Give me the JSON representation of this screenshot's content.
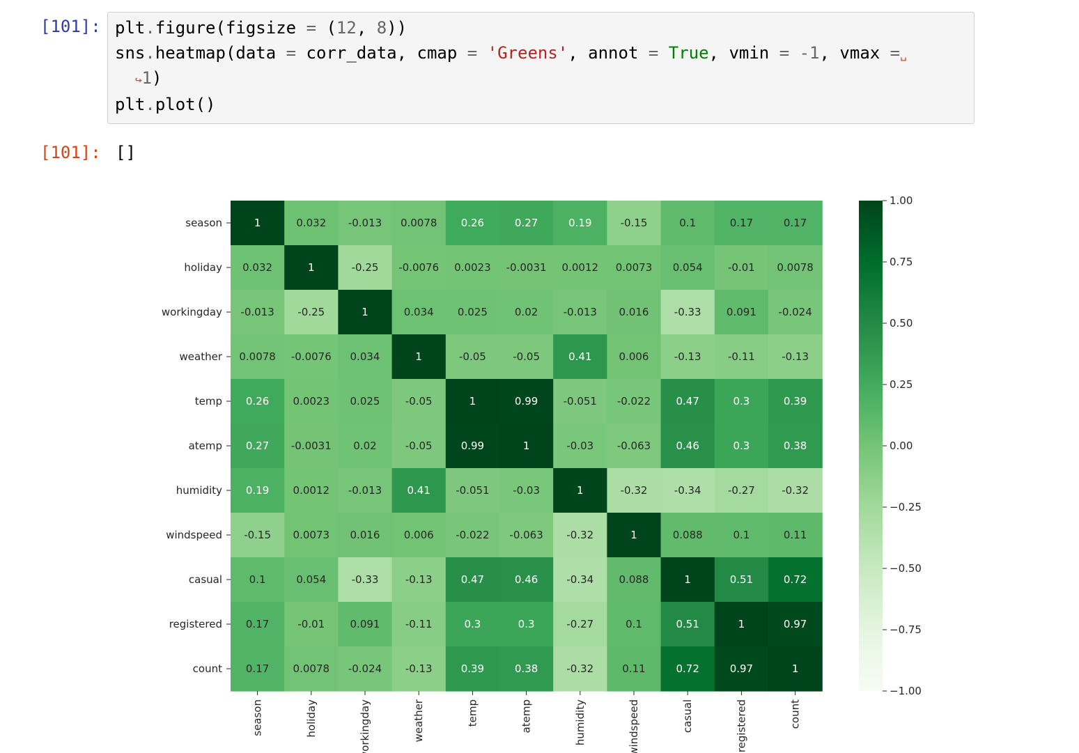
{
  "notebook": {
    "input_prompt": "[101]:",
    "output_prompt": "[101]:",
    "output_text": "[]",
    "code_lines": [
      [
        {
          "t": "plt",
          "c": ""
        },
        {
          "t": ".",
          "c": "op"
        },
        {
          "t": "figure(figsize ",
          "c": ""
        },
        {
          "t": "=",
          "c": "op"
        },
        {
          "t": " (",
          "c": ""
        },
        {
          "t": "12",
          "c": "num"
        },
        {
          "t": ", ",
          "c": ""
        },
        {
          "t": "8",
          "c": "num"
        },
        {
          "t": "))",
          "c": ""
        }
      ],
      [
        {
          "t": "sns",
          "c": ""
        },
        {
          "t": ".",
          "c": "op"
        },
        {
          "t": "heatmap(data ",
          "c": ""
        },
        {
          "t": "=",
          "c": "op"
        },
        {
          "t": " corr_data, cmap ",
          "c": ""
        },
        {
          "t": "=",
          "c": "op"
        },
        {
          "t": " ",
          "c": ""
        },
        {
          "t": "'Greens'",
          "c": "str"
        },
        {
          "t": ", annot ",
          "c": ""
        },
        {
          "t": "=",
          "c": "op"
        },
        {
          "t": " ",
          "c": ""
        },
        {
          "t": "True",
          "c": "kw"
        },
        {
          "t": ", vmin ",
          "c": ""
        },
        {
          "t": "=",
          "c": "op"
        },
        {
          "t": " ",
          "c": ""
        },
        {
          "t": "-1",
          "c": "num"
        },
        {
          "t": ", vmax ",
          "c": ""
        },
        {
          "t": "=",
          "c": "op"
        },
        {
          "t": "␣",
          "c": "cont"
        }
      ],
      [
        {
          "t": "  ",
          "c": ""
        },
        {
          "t": "↪",
          "c": "cont"
        },
        {
          "t": "1",
          "c": "num"
        },
        {
          "t": ")",
          "c": ""
        }
      ],
      [
        {
          "t": "plt",
          "c": ""
        },
        {
          "t": ".",
          "c": "op"
        },
        {
          "t": "plot()",
          "c": ""
        }
      ]
    ]
  },
  "chart_data": {
    "type": "heatmap",
    "cmap": "Greens",
    "vmin": -1,
    "vmax": 1,
    "row_labels": [
      "season",
      "holiday",
      "workingday",
      "weather",
      "temp",
      "atemp",
      "humidity",
      "windspeed",
      "casual",
      "registered",
      "count"
    ],
    "col_labels": [
      "season",
      "holiday",
      "workingday",
      "weather",
      "temp",
      "atemp",
      "humidity",
      "windspeed",
      "casual",
      "registered",
      "count"
    ],
    "values": [
      [
        1,
        0.032,
        -0.013,
        0.0078,
        0.26,
        0.27,
        0.19,
        -0.15,
        0.1,
        0.17,
        0.17
      ],
      [
        0.032,
        1,
        -0.25,
        -0.0076,
        0.0023,
        -0.0031,
        0.0012,
        0.0073,
        0.054,
        -0.01,
        0.0078
      ],
      [
        -0.013,
        -0.25,
        1,
        0.034,
        0.025,
        0.02,
        -0.013,
        0.016,
        -0.33,
        0.091,
        -0.024
      ],
      [
        0.0078,
        -0.0076,
        0.034,
        1,
        -0.05,
        -0.05,
        0.41,
        0.006,
        -0.13,
        -0.11,
        -0.13
      ],
      [
        0.26,
        0.0023,
        0.025,
        -0.05,
        1,
        0.99,
        -0.051,
        -0.022,
        0.47,
        0.3,
        0.39
      ],
      [
        0.27,
        -0.0031,
        0.02,
        -0.05,
        0.99,
        1,
        -0.03,
        -0.063,
        0.46,
        0.3,
        0.38
      ],
      [
        0.19,
        0.0012,
        -0.013,
        0.41,
        -0.051,
        -0.03,
        1,
        -0.32,
        -0.34,
        -0.27,
        -0.32
      ],
      [
        -0.15,
        0.0073,
        0.016,
        0.006,
        -0.022,
        -0.063,
        -0.32,
        1,
        0.088,
        0.1,
        0.11
      ],
      [
        0.1,
        0.054,
        -0.33,
        -0.13,
        0.47,
        0.46,
        -0.34,
        0.088,
        1,
        0.51,
        0.72
      ],
      [
        0.17,
        -0.01,
        0.091,
        -0.11,
        0.3,
        0.3,
        -0.27,
        0.1,
        0.51,
        1,
        0.97
      ],
      [
        0.17,
        0.0078,
        -0.024,
        -0.13,
        0.39,
        0.38,
        -0.32,
        0.11,
        0.72,
        0.97,
        1
      ]
    ],
    "colorbar_ticks": [
      "1.00",
      "0.75",
      "0.50",
      "0.25",
      "0.00",
      "−0.25",
      "−0.50",
      "−0.75",
      "−1.00"
    ],
    "colorbar_tick_values": [
      1,
      0.75,
      0.5,
      0.25,
      0,
      -0.25,
      -0.5,
      -0.75,
      -1
    ],
    "colors": {
      "greens": [
        "#f7fcf5",
        "#e5f5e0",
        "#c7e9c0",
        "#a1d99b",
        "#74c476",
        "#41ab5d",
        "#238b45",
        "#006d2c",
        "#00441b"
      ]
    }
  }
}
